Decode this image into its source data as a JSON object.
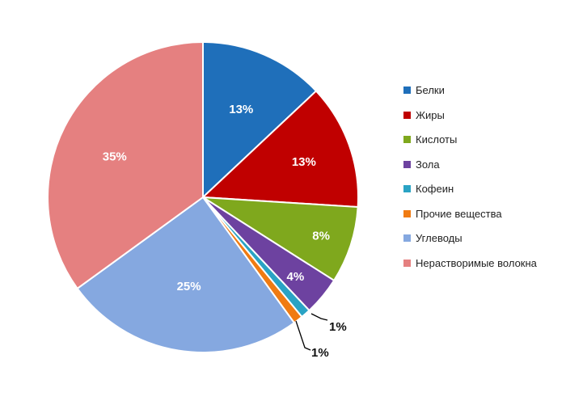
{
  "chart_data": {
    "type": "pie",
    "title": "",
    "categories": [
      "Белки",
      "Жиры",
      "Кислоты",
      "Зола",
      "Кофеин",
      "Прочие вещества",
      "Углеводы",
      "Нерастворимые волокна"
    ],
    "values": [
      13,
      13,
      8,
      4,
      1,
      1,
      25,
      35
    ],
    "labels": [
      "13%",
      "13%",
      "8%",
      "4%",
      "1%",
      "1%",
      "25%",
      "35%"
    ],
    "colors": [
      "#1f6fba",
      "#c00000",
      "#7fa81d",
      "#6d42a0",
      "#2aa3c4",
      "#f07b12",
      "#85a8e0",
      "#e58080"
    ],
    "legend_position": "right",
    "start_angle": "12 o'clock, clockwise"
  },
  "legend": {
    "items": [
      {
        "label": "Белки",
        "color": "#1f6fba"
      },
      {
        "label": "Жиры",
        "color": "#c00000"
      },
      {
        "label": "Кислоты",
        "color": "#7fa81d"
      },
      {
        "label": "Зола",
        "color": "#6d42a0"
      },
      {
        "label": "Кофеин",
        "color": "#2aa3c4"
      },
      {
        "label": "Прочие вещества",
        "color": "#f07b12"
      },
      {
        "label": "Углеводы",
        "color": "#85a8e0"
      },
      {
        "label": "Нерастворимые волокна",
        "color": "#e58080"
      }
    ]
  }
}
